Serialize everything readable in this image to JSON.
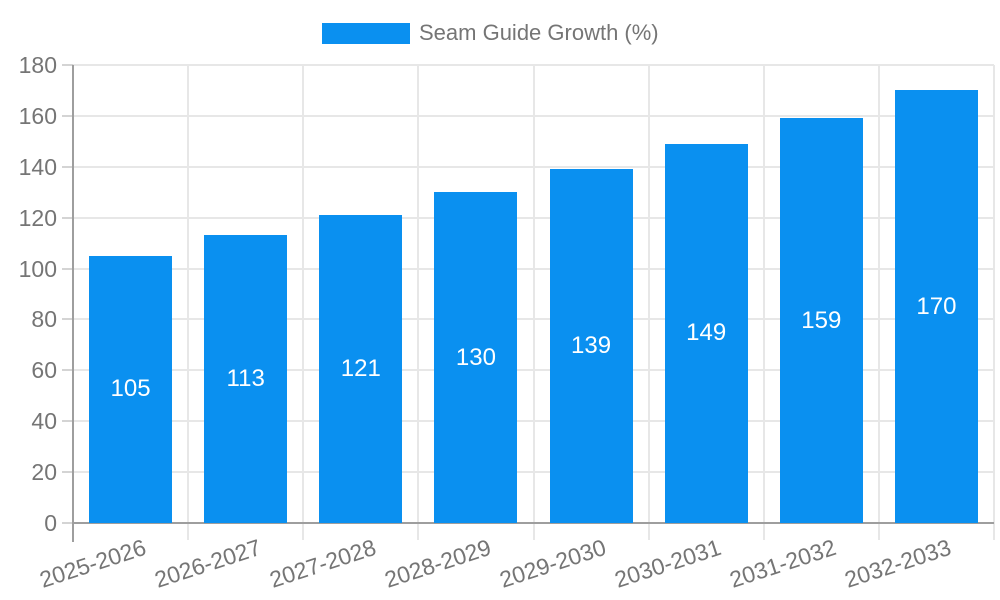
{
  "page": {
    "background": "#ffffff"
  },
  "legend": {
    "label": "Seam Guide Growth (%)"
  },
  "chart_data": {
    "type": "bar",
    "title": "Seam Guide Growth (%)",
    "categories": [
      "2025-2026",
      "2026-2027",
      "2027-2028",
      "2028-2029",
      "2029-2030",
      "2030-2031",
      "2031-2032",
      "2032-2033"
    ],
    "series": [
      {
        "name": "Seam Guide Growth (%)",
        "color": "#0a90f0",
        "values": [
          105,
          113,
          121,
          130,
          139,
          149,
          159,
          170
        ]
      }
    ],
    "bar_labels": [
      "105",
      "113",
      "121",
      "130",
      "139",
      "149",
      "159",
      "170"
    ],
    "xlabel": "",
    "ylabel": "",
    "ylim": [
      0,
      180
    ],
    "yticks": [
      0,
      20,
      40,
      60,
      80,
      100,
      120,
      140,
      160,
      180
    ],
    "grid": true,
    "legend_position": "top",
    "x_label_rotation_deg": -18,
    "bar_label_position": "center",
    "colors": {
      "bar": "#0a90f0",
      "bar_label": "#ffffff",
      "axis_line": "#9e9e9e",
      "gridline": "#e7e7e7",
      "tick_mark": "#d4d4d4",
      "axis_text": "#757575",
      "legend_text": "#757575"
    }
  }
}
